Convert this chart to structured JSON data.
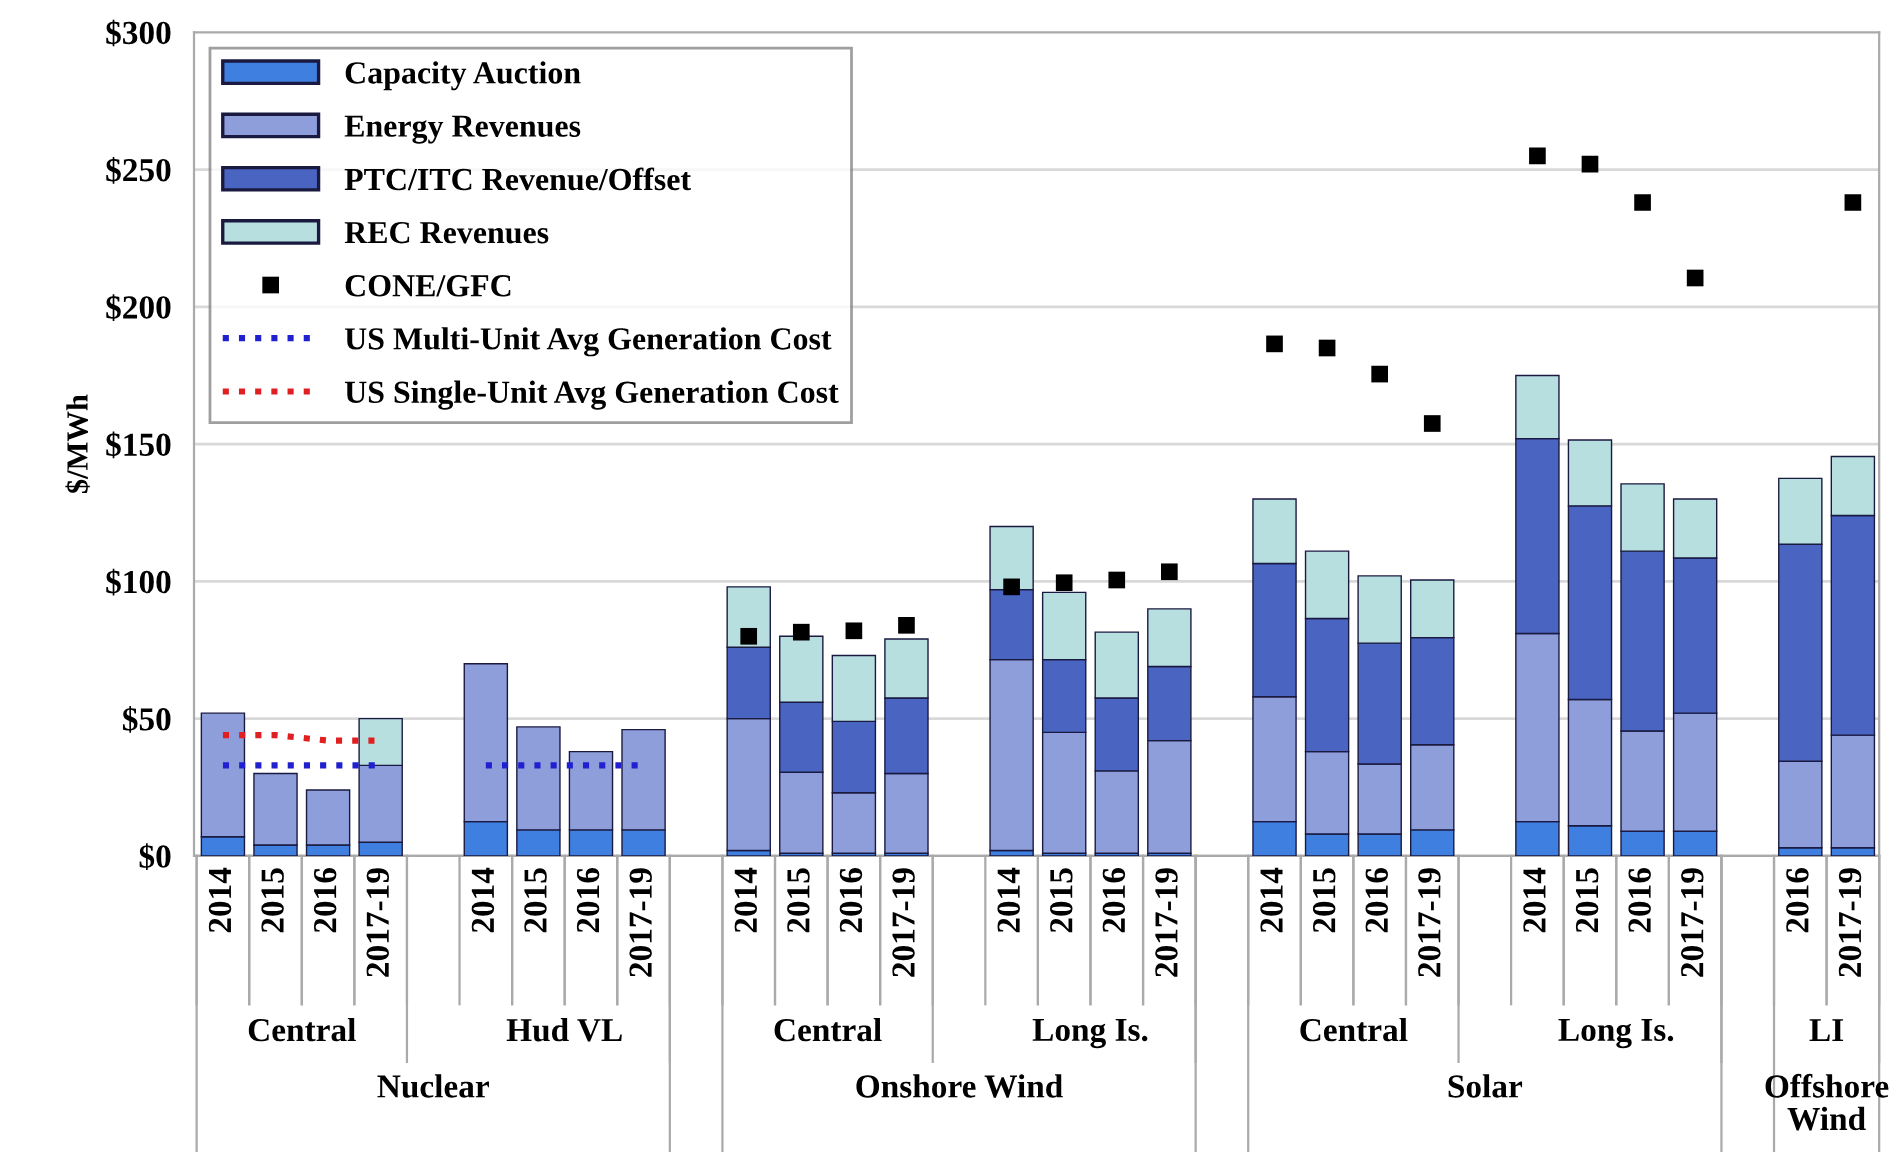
{
  "chart_data": {
    "type": "bar",
    "stacked": true,
    "ylabel": "$/MWh",
    "categories": [
      "2014",
      "2015",
      "2016",
      "2017-19",
      null,
      "2014",
      "2015",
      "2016",
      "2017-19",
      null,
      "2014",
      "2015",
      "2016",
      "2017-19",
      null,
      "2014",
      "2015",
      "2016",
      "2017-19",
      null,
      "2014",
      "2015",
      "2016",
      "2017-19",
      null,
      "2014",
      "2015",
      "2016",
      "2017-19",
      null,
      "2016",
      "2017-19"
    ],
    "series": [
      {
        "name": "Capacity Auction",
        "color": "#3f7fe0",
        "values": [
          7,
          4,
          4,
          5,
          null,
          12.5,
          9.5,
          9.5,
          9.5,
          null,
          2,
          1,
          1,
          1,
          null,
          2,
          1,
          1,
          1,
          null,
          12.5,
          8,
          8,
          9.5,
          null,
          12.5,
          11,
          9,
          9,
          null,
          3,
          3
        ]
      },
      {
        "name": "Energy Revenues",
        "color": "#8e9edb",
        "values": [
          45,
          26,
          20,
          28,
          null,
          57.5,
          37.5,
          28.5,
          36.5,
          null,
          48,
          29.5,
          22,
          29,
          null,
          69.5,
          44,
          30,
          41,
          null,
          45.5,
          30,
          25.5,
          31,
          null,
          68.5,
          46,
          36.5,
          43,
          null,
          31.5,
          41
        ]
      },
      {
        "name": "PTC/ITC Revenue/Offset",
        "color": "#4a64c2",
        "values": [
          null,
          null,
          null,
          null,
          null,
          null,
          null,
          null,
          null,
          null,
          26,
          25.5,
          26,
          27.5,
          null,
          25.5,
          26.5,
          26.5,
          27,
          null,
          48.5,
          48.5,
          44,
          39,
          null,
          71,
          70.5,
          65.5,
          56.5,
          null,
          79,
          80
        ]
      },
      {
        "name": "REC Revenues",
        "color": "#b7dfe0",
        "values": [
          null,
          null,
          null,
          17,
          null,
          null,
          null,
          null,
          null,
          null,
          22,
          24,
          24,
          21.5,
          null,
          23,
          24.5,
          24,
          21,
          null,
          23.5,
          24.5,
          24.5,
          21,
          null,
          23,
          24,
          24.5,
          21.5,
          null,
          24,
          21.5
        ]
      },
      {
        "name": "CONE/GFC",
        "type": "scatter",
        "marker": "square",
        "color": "#000000",
        "values": [
          null,
          null,
          null,
          null,
          null,
          null,
          null,
          null,
          null,
          null,
          80,
          81.5,
          82,
          84,
          null,
          98,
          99.5,
          100.5,
          103.5,
          null,
          186.5,
          185,
          175.5,
          157.5,
          null,
          255,
          252,
          238,
          210.5,
          null,
          null,
          238
        ]
      },
      {
        "name": "US Multi-Unit Avg Generation Cost",
        "type": "line",
        "line_style": "dotted",
        "color": "#2020d0",
        "values": [
          33,
          33,
          33,
          33,
          null,
          33,
          33,
          33,
          33,
          null,
          null,
          null,
          null,
          null,
          null,
          null,
          null,
          null,
          null,
          null,
          null,
          null,
          null,
          null,
          null,
          null,
          null,
          null,
          null,
          null,
          null,
          null
        ]
      },
      {
        "name": "US Single-Unit Avg Generation Cost",
        "type": "line",
        "line_style": "dotted",
        "color": "#e02020",
        "values": [
          44,
          44,
          42,
          42,
          null,
          null,
          null,
          null,
          null,
          null,
          null,
          null,
          null,
          null,
          null,
          null,
          null,
          null,
          null,
          null,
          null,
          null,
          null,
          null,
          null,
          null,
          null,
          null,
          null,
          null,
          null,
          null
        ]
      }
    ],
    "ylim": [
      0,
      300
    ],
    "yticks": [
      {
        "value": 0,
        "label": "$0"
      },
      {
        "value": 50,
        "label": "$50"
      },
      {
        "value": 100,
        "label": "$100"
      },
      {
        "value": 150,
        "label": "$150"
      },
      {
        "value": 200,
        "label": "$200"
      },
      {
        "value": 250,
        "label": "$250"
      },
      {
        "value": 300,
        "label": "$300"
      }
    ],
    "grid": "y",
    "legend": "top left",
    "annotations": [
      "Central",
      "Hud VL",
      "Central",
      "Long Is.",
      "Central",
      "Long Is.",
      "LI",
      "Nuclear",
      "Onshore Wind",
      "Solar",
      "Offshore Wind"
    ]
  }
}
